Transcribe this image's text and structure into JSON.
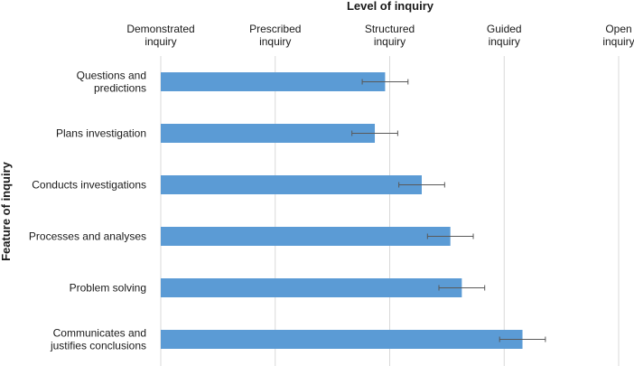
{
  "chart_data": {
    "type": "bar",
    "orientation": "horizontal",
    "title": "Level of inquiry",
    "xlabel": "Level of inquiry",
    "ylabel": "Feature of inquiry",
    "x_axis_position": "top",
    "grid": true,
    "xlim": [
      0,
      4
    ],
    "x_ticks": [
      {
        "value": 0,
        "label": [
          "Demonstrated",
          "inquiry"
        ]
      },
      {
        "value": 1,
        "label": [
          "Prescribed",
          "inquiry"
        ]
      },
      {
        "value": 2,
        "label": [
          "Structured",
          "inquiry"
        ]
      },
      {
        "value": 3,
        "label": [
          "Guided",
          "inquiry"
        ]
      },
      {
        "value": 4,
        "label": [
          "Open",
          "inquiry"
        ]
      }
    ],
    "categories": [
      [
        "Questions and",
        "predictions"
      ],
      [
        "Plans investigation"
      ],
      [
        "Conducts investigations"
      ],
      [
        "Processes and analyses"
      ],
      [
        "Problem solving"
      ],
      [
        "Communicates and",
        "justifies conclusions"
      ]
    ],
    "values": [
      1.96,
      1.87,
      2.28,
      2.53,
      2.63,
      3.16
    ],
    "error": [
      0.2,
      0.2,
      0.2,
      0.2,
      0.2,
      0.2
    ],
    "bar_color": "#5b9bd5",
    "error_bar_color": "#595959"
  }
}
